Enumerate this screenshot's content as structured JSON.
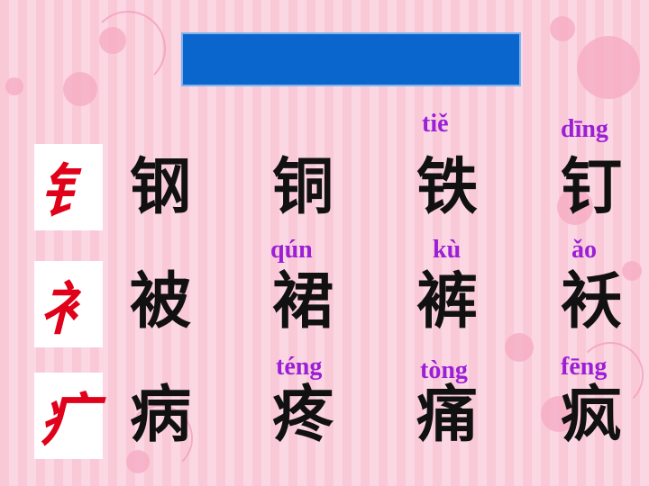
{
  "title": "",
  "radicals": [
    "钅",
    "衤",
    "疒"
  ],
  "rows": [
    {
      "chars": [
        "钢",
        "铜",
        "铁",
        "钉"
      ],
      "pinyin": [
        "",
        "",
        "tiě",
        "dīng"
      ]
    },
    {
      "chars": [
        "被",
        "裙",
        "裤",
        "袄"
      ],
      "pinyin": [
        "",
        "qún",
        "kù",
        "ǎo"
      ]
    },
    {
      "chars": [
        "病",
        "疼",
        "痛",
        "疯"
      ],
      "pinyin": [
        "",
        "téng",
        "tòng",
        "fēng"
      ]
    }
  ],
  "colors": {
    "banner": "#0a66cc",
    "pinyin": "#9b1fd6",
    "radical": "#e1001a"
  }
}
